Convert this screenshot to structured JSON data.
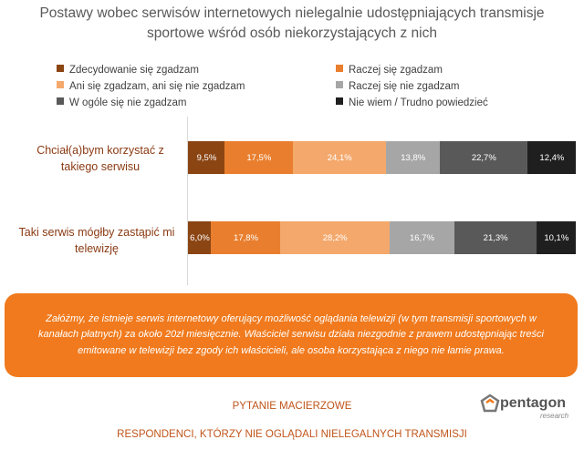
{
  "chart_data": {
    "type": "bar",
    "orientation": "horizontal-stacked-100",
    "title": "Postawy wobec serwisów internetowych nielegalnie udostępniających transmisje sportowe wśród osób niekorzystających z nich",
    "categories": [
      "Chciał(a)bym korzystać z takiego serwisu",
      "Taki serwis mógłby zastąpić mi telewizję"
    ],
    "series": [
      {
        "name": "Zdecydowanie się zgadzam",
        "color": "#8b4513",
        "text_color": "#ffffff",
        "values": [
          9.5,
          6.0
        ],
        "labels": [
          "9,5%",
          "6,0%"
        ]
      },
      {
        "name": "Raczej się zgadzam",
        "color": "#e97f2e",
        "text_color": "#ffffff",
        "values": [
          17.5,
          17.8
        ],
        "labels": [
          "17,5%",
          "17,8%"
        ]
      },
      {
        "name": "Ani się zgadzam, ani się nie zgadzam",
        "color": "#f4a86b",
        "text_color": "#ffffff",
        "values": [
          24.1,
          28.2
        ],
        "labels": [
          "24,1%",
          "28,2%"
        ]
      },
      {
        "name": "Raczej się nie zgadzam",
        "color": "#a6a6a6",
        "text_color": "#ffffff",
        "values": [
          13.8,
          16.7
        ],
        "labels": [
          "13,8%",
          "16,7%"
        ]
      },
      {
        "name": "W ogóle się nie zgadzam",
        "color": "#595959",
        "text_color": "#ffffff",
        "values": [
          22.7,
          21.3
        ],
        "labels": [
          "22,7%",
          "21,3%"
        ]
      },
      {
        "name": "Nie wiem / Trudno powiedzieć",
        "color": "#1f1f1f",
        "text_color": "#ffffff",
        "values": [
          12.4,
          10.1
        ],
        "labels": [
          "12,4%",
          "10,1%"
        ]
      }
    ],
    "xlim": [
      0,
      100
    ],
    "grid": false,
    "legend_position": "top"
  },
  "note": "Załóżmy, że istnieje serwis internetowy oferujący możliwość oglądania telewizji (w tym transmisji sportowych w kanałach płatnych) za około 20zł miesięcznie. Właściciel serwisu działa niezgodnie z prawem udostępniając treści emitowane w telewizji bez zgody ich właścicieli, ale osoba korzystająca z niego nie łamie prawa.",
  "footer": {
    "question": "PYTANIE MACIERZOWE",
    "respondents": "RESPONDENCI, KTÓRZY NIE OGLĄDALI NIELEGALNYCH TRANSMISJI"
  },
  "logo": {
    "name": "pentagon",
    "subtitle": "research"
  }
}
